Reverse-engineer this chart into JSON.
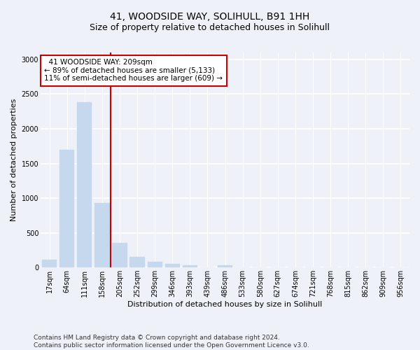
{
  "title": "41, WOODSIDE WAY, SOLIHULL, B91 1HH",
  "subtitle": "Size of property relative to detached houses in Solihull",
  "xlabel": "Distribution of detached houses by size in Solihull",
  "ylabel": "Number of detached properties",
  "bar_labels": [
    "17sqm",
    "64sqm",
    "111sqm",
    "158sqm",
    "205sqm",
    "252sqm",
    "299sqm",
    "346sqm",
    "393sqm",
    "439sqm",
    "486sqm",
    "533sqm",
    "580sqm",
    "627sqm",
    "674sqm",
    "721sqm",
    "768sqm",
    "815sqm",
    "862sqm",
    "909sqm",
    "956sqm"
  ],
  "bar_values": [
    110,
    1700,
    2380,
    930,
    350,
    155,
    80,
    55,
    35,
    5,
    30,
    5,
    5,
    0,
    0,
    0,
    0,
    0,
    0,
    0,
    0
  ],
  "bar_color": "#c5d8ed",
  "bar_edge_color": "#c5d8ed",
  "vline_x_index": 4,
  "vline_color": "#cc0000",
  "annotation_line1": "  41 WOODSIDE WAY: 209sqm",
  "annotation_line2": "← 89% of detached houses are smaller (5,133)",
  "annotation_line3": "11% of semi-detached houses are larger (609) →",
  "annotation_box_color": "white",
  "annotation_box_edge": "#cc0000",
  "ylim": [
    0,
    3100
  ],
  "yticks": [
    0,
    500,
    1000,
    1500,
    2000,
    2500,
    3000
  ],
  "footer_line1": "Contains HM Land Registry data © Crown copyright and database right 2024.",
  "footer_line2": "Contains public sector information licensed under the Open Government Licence v3.0.",
  "bg_color": "#eef2f8",
  "plot_bg_color": "#eef2f8",
  "grid_color": "#ffffff",
  "title_fontsize": 10,
  "subtitle_fontsize": 9,
  "axis_label_fontsize": 8,
  "tick_fontsize": 7,
  "footer_fontsize": 6.5,
  "annotation_fontsize": 7.5
}
